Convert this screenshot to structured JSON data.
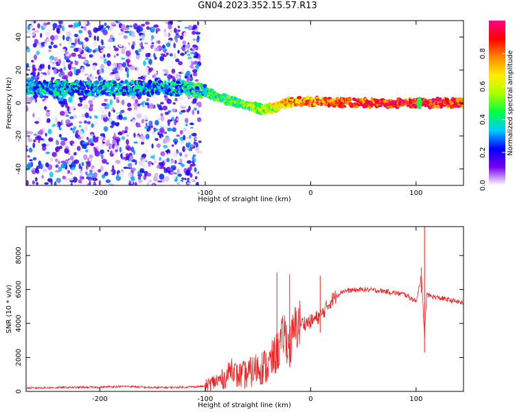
{
  "title": "GN04.2023.352.15.57.R13",
  "chart_data": [
    {
      "type": "heatmap",
      "title": "GN04.2023.352.15.57.R13",
      "xlabel": "Height of straight line (km)",
      "ylabel": "Frequency (Hz)",
      "xlim": [
        -270,
        145
      ],
      "ylim": [
        -50,
        50
      ],
      "xticks": [
        -200,
        -100,
        0,
        100
      ],
      "yticks": [
        -40,
        -20,
        0,
        20,
        40
      ],
      "colorbar": {
        "label": "Normalized spectral amplitude",
        "range": [
          0,
          1
        ],
        "ticks": [
          "0.0",
          "0.2",
          "0.4",
          "0.6",
          "0.8"
        ],
        "colors": [
          "#ffffff",
          "#7700ee",
          "#0000ff",
          "#00ccff",
          "#00ff44",
          "#aaff00",
          "#ffee00",
          "#ff8800",
          "#ff0000",
          "#ff0088"
        ]
      },
      "noise_region_x": [
        -270,
        -105
      ],
      "ridge": {
        "x": [
          -270,
          -200,
          -150,
          -120,
          -100,
          -80,
          -60,
          -45,
          -35,
          -25,
          -10,
          0,
          50,
          100,
          145
        ],
        "frequency": [
          9,
          9,
          9,
          9,
          7,
          2,
          -1,
          -4,
          -3,
          0,
          1,
          1,
          0,
          0,
          0
        ],
        "amplitude": [
          0.3,
          0.3,
          0.3,
          0.35,
          0.4,
          0.45,
          0.5,
          0.55,
          0.6,
          0.7,
          0.75,
          0.8,
          0.85,
          0.9,
          0.85
        ]
      },
      "legend": "none",
      "grid": false
    },
    {
      "type": "line",
      "xlabel": "Height of straight line (km)",
      "ylabel": "SNR (10 * v/v)",
      "xlim": [
        -270,
        145
      ],
      "ylim": [
        0,
        9700
      ],
      "xticks": [
        -200,
        -100,
        0,
        100
      ],
      "yticks": [
        0,
        2000,
        4000,
        6000,
        8000
      ],
      "color": "#ee2222",
      "x": [
        -270,
        -250,
        -200,
        -175,
        -150,
        -120,
        -100,
        -90,
        -80,
        -75,
        -70,
        -60,
        -50,
        -40,
        -30,
        -25,
        -20,
        -15,
        -10,
        0,
        10,
        20,
        30,
        50,
        70,
        90,
        100,
        105,
        108,
        110,
        115,
        130,
        145
      ],
      "y": [
        200,
        220,
        250,
        300,
        220,
        250,
        300,
        600,
        800,
        1500,
        900,
        1000,
        1400,
        1500,
        2500,
        3500,
        2500,
        3700,
        4000,
        4100,
        4500,
        5400,
        5900,
        6000,
        5900,
        5700,
        5300,
        6800,
        3300,
        5700,
        5600,
        5400,
        5200
      ],
      "legend": "none",
      "grid": false
    }
  ]
}
